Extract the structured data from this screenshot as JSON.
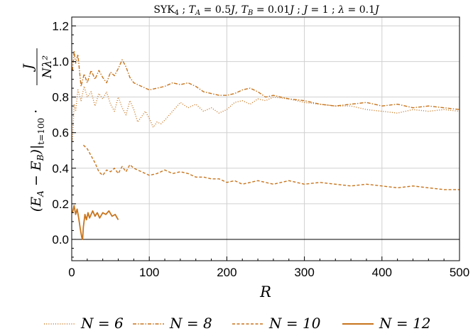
{
  "chart_data": {
    "type": "line",
    "title": "SYK₄ ; T_A = 0.5J, T_B = 0.01J ; J = 1 ; λ = 0.1J",
    "xlabel": "R",
    "ylabel": "(E_A − E_B)|t=100 · J / (N λ²)",
    "xlim": [
      0,
      500
    ],
    "ylim": [
      -0.12,
      1.25
    ],
    "x_ticks": [
      0,
      100,
      200,
      300,
      400,
      500
    ],
    "y_ticks": [
      0.0,
      0.2,
      0.4,
      0.6,
      0.8,
      1.0,
      1.2
    ],
    "grid": true,
    "legend_position": "bottom",
    "color": "#c8741c",
    "series": [
      {
        "name": "N = 6",
        "style": "dotted",
        "x": [
          1,
          3,
          5,
          8,
          12,
          16,
          20,
          25,
          30,
          35,
          40,
          45,
          50,
          55,
          60,
          65,
          70,
          75,
          80,
          85,
          90,
          95,
          100,
          105,
          110,
          115,
          120,
          130,
          140,
          150,
          160,
          170,
          180,
          190,
          200,
          210,
          220,
          230,
          240,
          250,
          260,
          280,
          300,
          320,
          340,
          360,
          380,
          400,
          420,
          440,
          460,
          480,
          500
        ],
        "y": [
          0.55,
          0.76,
          0.72,
          0.84,
          0.78,
          0.86,
          0.8,
          0.83,
          0.75,
          0.82,
          0.79,
          0.83,
          0.76,
          0.72,
          0.8,
          0.74,
          0.7,
          0.78,
          0.73,
          0.66,
          0.69,
          0.72,
          0.68,
          0.63,
          0.66,
          0.65,
          0.67,
          0.72,
          0.77,
          0.74,
          0.76,
          0.72,
          0.74,
          0.71,
          0.73,
          0.77,
          0.78,
          0.76,
          0.79,
          0.78,
          0.8,
          0.79,
          0.77,
          0.76,
          0.75,
          0.75,
          0.73,
          0.72,
          0.71,
          0.73,
          0.72,
          0.73,
          0.72
        ]
      },
      {
        "name": "N = 8",
        "style": "dashdot",
        "x": [
          1,
          3,
          5,
          8,
          12,
          16,
          20,
          25,
          30,
          35,
          40,
          45,
          50,
          55,
          60,
          65,
          70,
          75,
          80,
          90,
          100,
          110,
          120,
          130,
          140,
          150,
          160,
          170,
          180,
          190,
          200,
          210,
          220,
          230,
          240,
          250,
          260,
          280,
          300,
          320,
          340,
          360,
          380,
          400,
          420,
          440,
          460,
          480,
          500
        ],
        "y": [
          0.95,
          1.06,
          0.99,
          1.04,
          0.86,
          0.93,
          0.88,
          0.95,
          0.9,
          0.95,
          0.91,
          0.88,
          0.94,
          0.92,
          0.96,
          1.01,
          0.97,
          0.91,
          0.88,
          0.86,
          0.84,
          0.85,
          0.86,
          0.88,
          0.87,
          0.88,
          0.86,
          0.83,
          0.82,
          0.81,
          0.81,
          0.82,
          0.84,
          0.85,
          0.83,
          0.8,
          0.81,
          0.79,
          0.78,
          0.76,
          0.75,
          0.76,
          0.77,
          0.75,
          0.76,
          0.74,
          0.75,
          0.74,
          0.73
        ]
      },
      {
        "name": "N = 10",
        "style": "dashed",
        "x": [
          15,
          20,
          25,
          30,
          35,
          40,
          45,
          50,
          55,
          60,
          65,
          70,
          75,
          80,
          90,
          100,
          110,
          120,
          130,
          140,
          150,
          160,
          170,
          180,
          190,
          200,
          210,
          220,
          230,
          240,
          250,
          260,
          270,
          280,
          300,
          320,
          340,
          360,
          380,
          400,
          420,
          440,
          460,
          480,
          500
        ],
        "y": [
          0.53,
          0.51,
          0.47,
          0.43,
          0.38,
          0.36,
          0.39,
          0.38,
          0.4,
          0.37,
          0.41,
          0.38,
          0.42,
          0.4,
          0.38,
          0.36,
          0.37,
          0.39,
          0.37,
          0.38,
          0.37,
          0.35,
          0.35,
          0.34,
          0.34,
          0.32,
          0.33,
          0.31,
          0.32,
          0.33,
          0.32,
          0.31,
          0.32,
          0.33,
          0.31,
          0.32,
          0.31,
          0.3,
          0.31,
          0.3,
          0.29,
          0.3,
          0.29,
          0.28,
          0.28
        ]
      },
      {
        "name": "N = 12",
        "style": "solid",
        "x": [
          1,
          3,
          5,
          7,
          9,
          11,
          13,
          14,
          15,
          17,
          19,
          21,
          23,
          25,
          27,
          30,
          33,
          36,
          40,
          44,
          48,
          52,
          56,
          60
        ],
        "y": [
          0.15,
          0.19,
          0.14,
          0.17,
          0.12,
          0.06,
          0.01,
          0.0,
          0.07,
          0.14,
          0.11,
          0.15,
          0.12,
          0.14,
          0.16,
          0.13,
          0.15,
          0.12,
          0.15,
          0.14,
          0.16,
          0.13,
          0.14,
          0.11
        ]
      }
    ]
  }
}
